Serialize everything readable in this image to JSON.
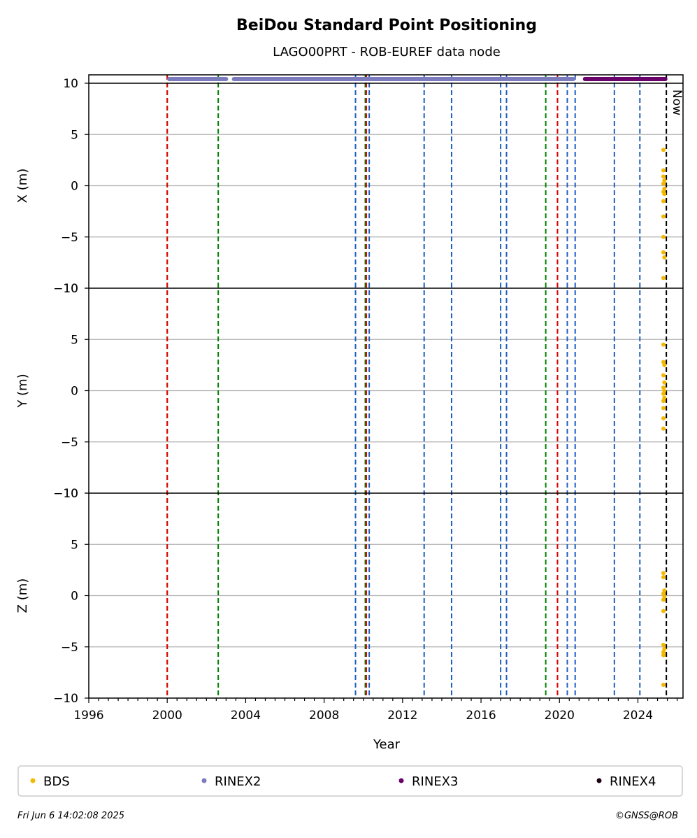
{
  "chart_data": {
    "type": "scatter",
    "title": "BeiDou Standard Point Positioning",
    "subtitle": "LAGO00PRT - ROB-EUREF data node",
    "xlabel": "Year",
    "xlim": [
      1996.0,
      2026.3
    ],
    "x_ticks": [
      1996,
      2000,
      2004,
      2008,
      2012,
      2016,
      2020,
      2024
    ],
    "x_minor_step": 0.5,
    "y_ticks": [
      -10,
      -5,
      0,
      5,
      10
    ],
    "grid": true,
    "panels": [
      {
        "ylabel": "X (m)",
        "ylim": [
          -10,
          10.8
        ],
        "points": [
          {
            "x": 2025.3,
            "y": 3.5
          },
          {
            "x": 2025.3,
            "y": 1.5
          },
          {
            "x": 2025.3,
            "y": 0.9
          },
          {
            "x": 2025.35,
            "y": 0.5
          },
          {
            "x": 2025.3,
            "y": 0.2
          },
          {
            "x": 2025.35,
            "y": -0.3
          },
          {
            "x": 2025.3,
            "y": -0.6
          },
          {
            "x": 2025.35,
            "y": -0.8
          },
          {
            "x": 2025.3,
            "y": -1.5
          },
          {
            "x": 2025.3,
            "y": -3.0
          },
          {
            "x": 2025.3,
            "y": -5.0
          },
          {
            "x": 2025.3,
            "y": -6.5
          },
          {
            "x": 2025.35,
            "y": -7.0
          },
          {
            "x": 2025.3,
            "y": -9.0
          }
        ]
      },
      {
        "ylabel": "Y (m)",
        "ylim": [
          -10,
          10
        ],
        "points": [
          {
            "x": 2025.3,
            "y": 4.5
          },
          {
            "x": 2025.3,
            "y": 2.8
          },
          {
            "x": 2025.35,
            "y": 2.5
          },
          {
            "x": 2025.3,
            "y": 1.5
          },
          {
            "x": 2025.35,
            "y": 0.8
          },
          {
            "x": 2025.3,
            "y": 0.3
          },
          {
            "x": 2025.35,
            "y": 0.0
          },
          {
            "x": 2025.3,
            "y": -0.3
          },
          {
            "x": 2025.35,
            "y": -0.7
          },
          {
            "x": 2025.3,
            "y": -1.0
          },
          {
            "x": 2025.3,
            "y": -1.7
          },
          {
            "x": 2025.3,
            "y": -2.7
          },
          {
            "x": 2025.3,
            "y": -3.7
          }
        ]
      },
      {
        "ylabel": "Z (m)",
        "ylim": [
          -10,
          10
        ],
        "points": [
          {
            "x": 2025.3,
            "y": 2.2
          },
          {
            "x": 2025.3,
            "y": 1.8
          },
          {
            "x": 2025.35,
            "y": 0.5
          },
          {
            "x": 2025.3,
            "y": 0.2
          },
          {
            "x": 2025.35,
            "y": -0.1
          },
          {
            "x": 2025.3,
            "y": -0.4
          },
          {
            "x": 2025.3,
            "y": -1.5
          },
          {
            "x": 2025.3,
            "y": -4.8
          },
          {
            "x": 2025.35,
            "y": -5.2
          },
          {
            "x": 2025.3,
            "y": -5.5
          },
          {
            "x": 2025.3,
            "y": -5.8
          },
          {
            "x": 2025.3,
            "y": -8.7
          }
        ]
      }
    ],
    "availability": [
      {
        "name": "RINEX2",
        "start": 2000.1,
        "end": 2003.0
      },
      {
        "name": "RINEX2",
        "start": 2003.4,
        "end": 2020.7
      },
      {
        "name": "RINEX3",
        "start": 2021.3,
        "end": 2025.4
      }
    ],
    "event_lines": [
      {
        "x": 2000.0,
        "color": "#008000"
      },
      {
        "x": 2000.0,
        "color": "#e00000"
      },
      {
        "x": 2002.6,
        "color": "#008000"
      },
      {
        "x": 2009.6,
        "color": "#1f5fbf"
      },
      {
        "x": 2010.1,
        "color": "#008000"
      },
      {
        "x": 2010.15,
        "color": "#e00000"
      },
      {
        "x": 2010.3,
        "color": "#1f5fbf"
      },
      {
        "x": 2013.1,
        "color": "#1f5fbf"
      },
      {
        "x": 2014.5,
        "color": "#1f5fbf"
      },
      {
        "x": 2017.0,
        "color": "#1f5fbf"
      },
      {
        "x": 2017.3,
        "color": "#1f5fbf"
      },
      {
        "x": 2019.3,
        "color": "#008000"
      },
      {
        "x": 2019.9,
        "color": "#008000"
      },
      {
        "x": 2019.9,
        "color": "#e00000"
      },
      {
        "x": 2020.4,
        "color": "#1f5fbf"
      },
      {
        "x": 2020.8,
        "color": "#1f5fbf"
      },
      {
        "x": 2022.8,
        "color": "#1f5fbf"
      },
      {
        "x": 2024.1,
        "color": "#1f5fbf"
      }
    ],
    "now": {
      "x": 2025.45,
      "label": "Now"
    },
    "legend": [
      {
        "label": "BDS",
        "color": "#f5b800"
      },
      {
        "label": "RINEX2",
        "color": "#7b7bbd"
      },
      {
        "label": "RINEX3",
        "color": "#6a006a"
      },
      {
        "label": "RINEX4",
        "color": "#1a0010"
      }
    ],
    "legend_position": "bottom",
    "colors": {
      "bds": "#f5b800",
      "rinex2": "#7b7bbd",
      "rinex3": "#6a006a",
      "rinex4": "#1a0010",
      "grid": "#b0b0b0",
      "green": "#008000",
      "red": "#e00000",
      "blue": "#1f5fbf"
    }
  },
  "footer": {
    "timestamp": "Fri Jun  6 14:02:08 2025",
    "copyright": "©GNSS@ROB"
  }
}
